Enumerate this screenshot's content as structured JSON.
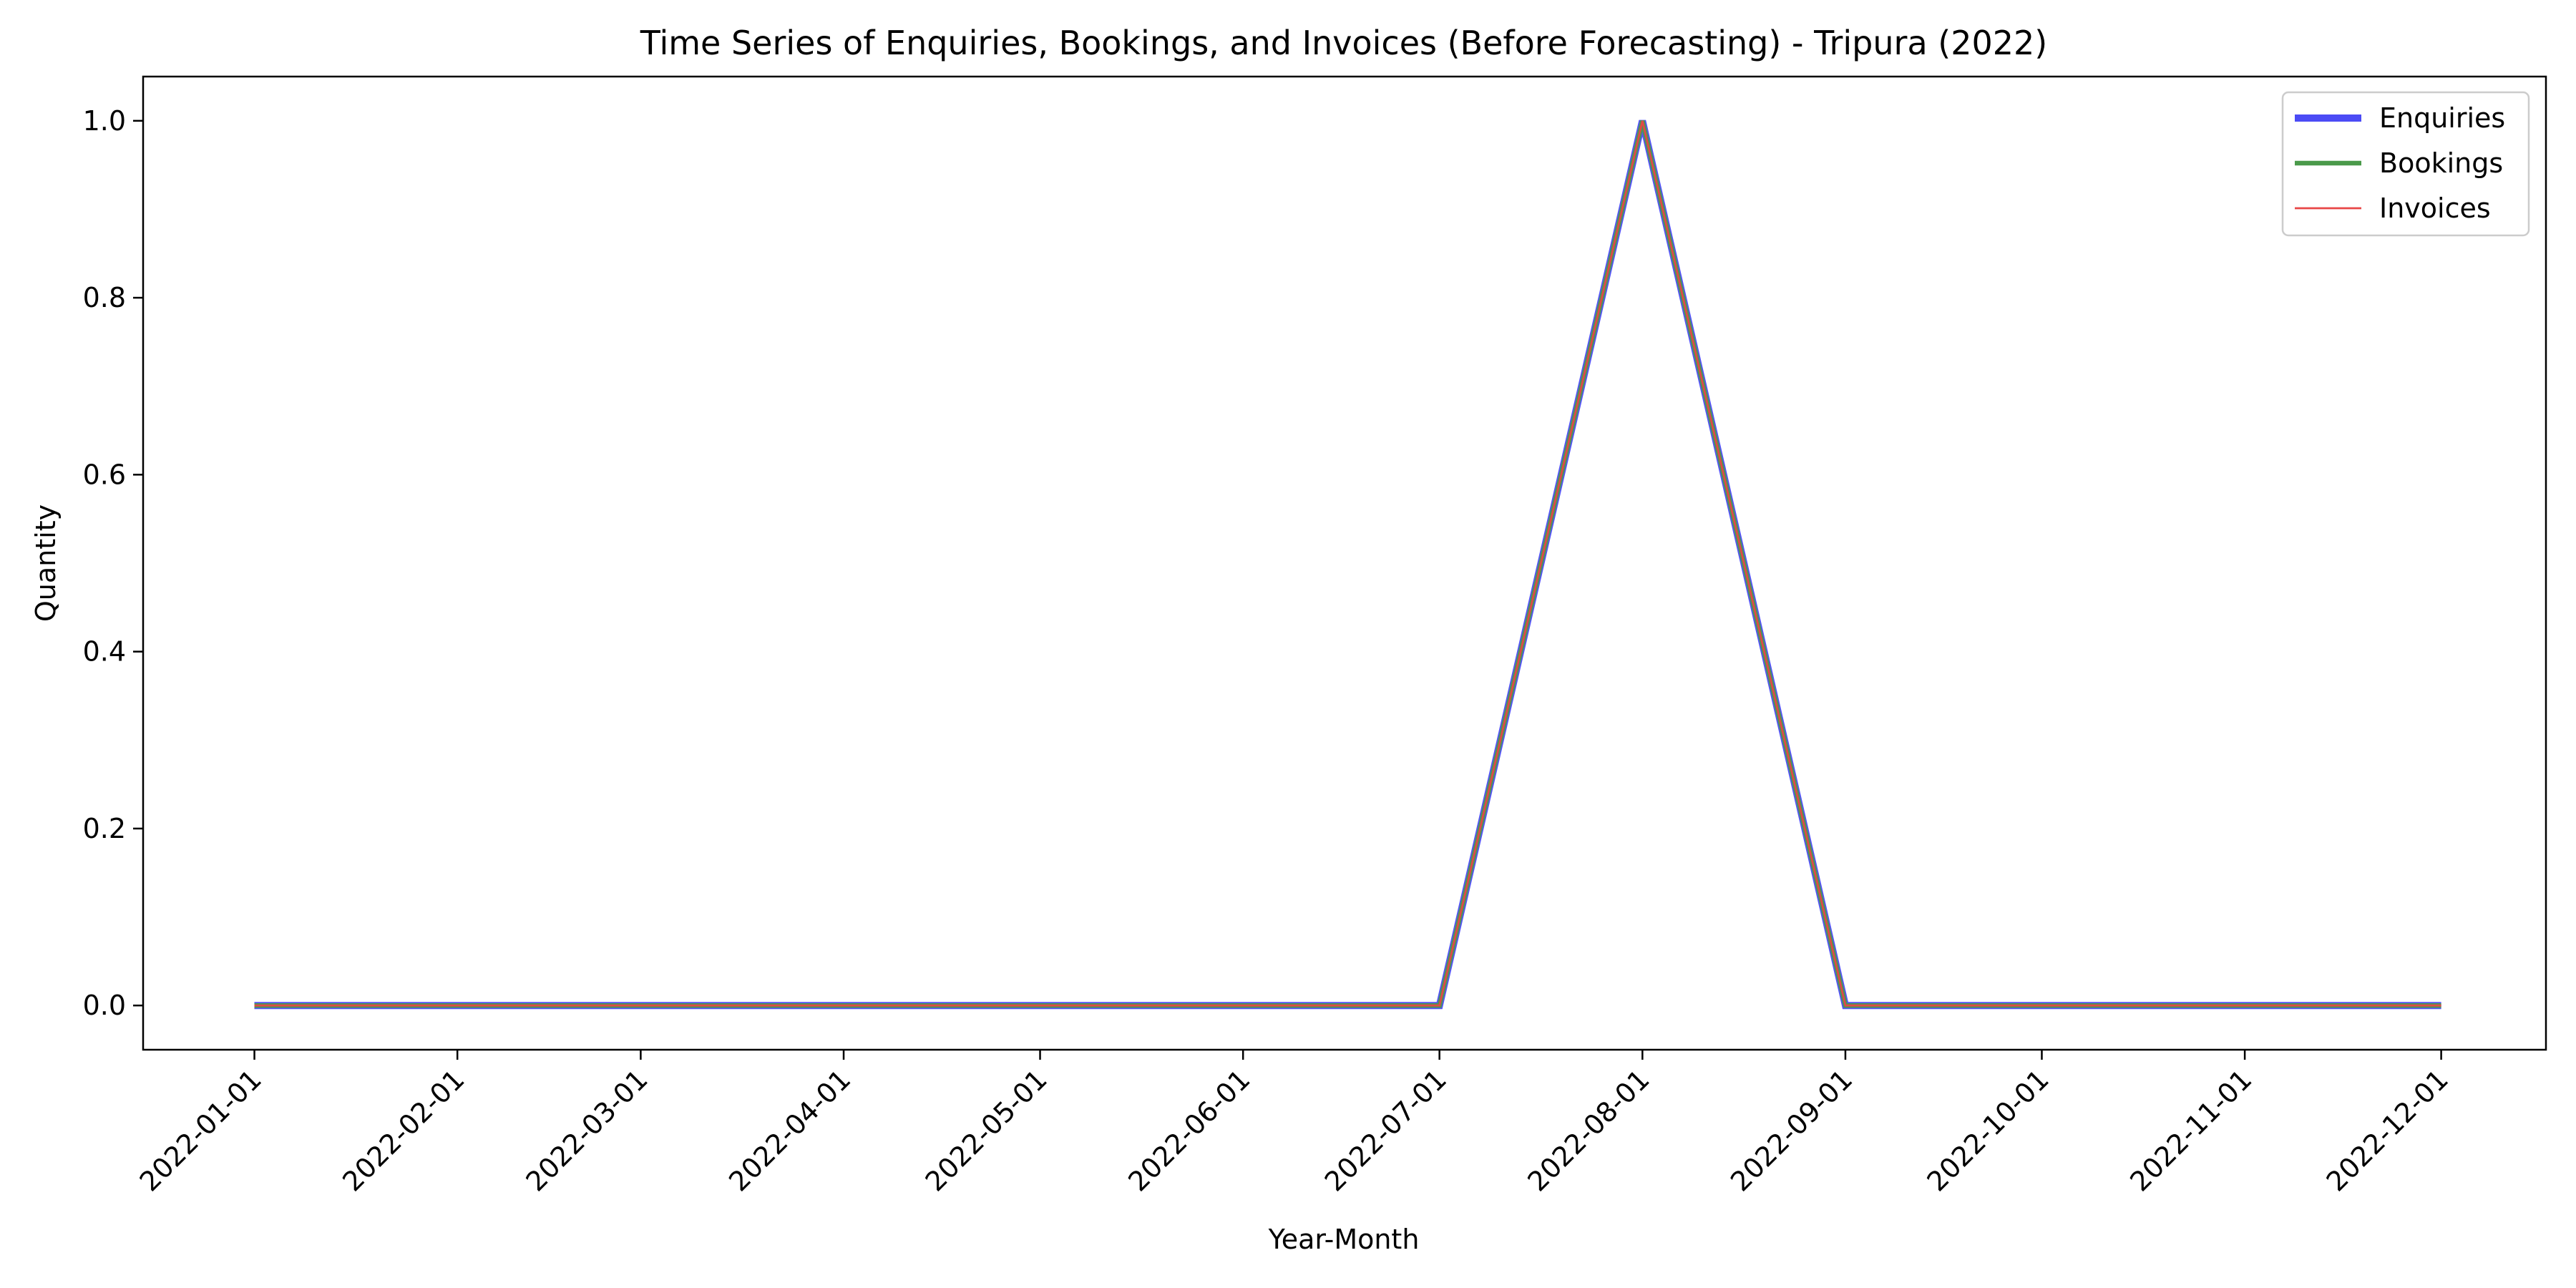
{
  "chart_data": {
    "type": "line",
    "title": "Time Series of Enquiries, Bookings, and Invoices (Before Forecasting) - Tripura (2022)",
    "xlabel": "Year-Month",
    "ylabel": "Quantity",
    "x": [
      "2022-01-01",
      "2022-02-01",
      "2022-03-01",
      "2022-04-01",
      "2022-05-01",
      "2022-06-01",
      "2022-07-01",
      "2022-08-01",
      "2022-09-01",
      "2022-10-01",
      "2022-11-01",
      "2022-12-01"
    ],
    "xlim": [
      "2021-12-15",
      "2022-12-17"
    ],
    "ylim": [
      -0.05,
      1.05
    ],
    "yticks": [
      0.0,
      0.2,
      0.4,
      0.6,
      0.8,
      1.0
    ],
    "ytick_labels": [
      "0.0",
      "0.2",
      "0.4",
      "0.6",
      "0.8",
      "1.0"
    ],
    "grid": false,
    "legend_position": "top-right",
    "series": [
      {
        "name": "Enquiries",
        "color": "#4b4bf5",
        "values": [
          0,
          0,
          0,
          0,
          0,
          0,
          0,
          1,
          0,
          0,
          0,
          0
        ]
      },
      {
        "name": "Bookings",
        "color": "#4a9a4a",
        "values": [
          0,
          0,
          0,
          0,
          0,
          0,
          0,
          1,
          0,
          0,
          0,
          0
        ]
      },
      {
        "name": "Invoices",
        "color": "#e84646",
        "values": [
          0,
          0,
          0,
          0,
          0,
          0,
          0,
          1,
          0,
          0,
          0,
          0
        ]
      }
    ]
  }
}
